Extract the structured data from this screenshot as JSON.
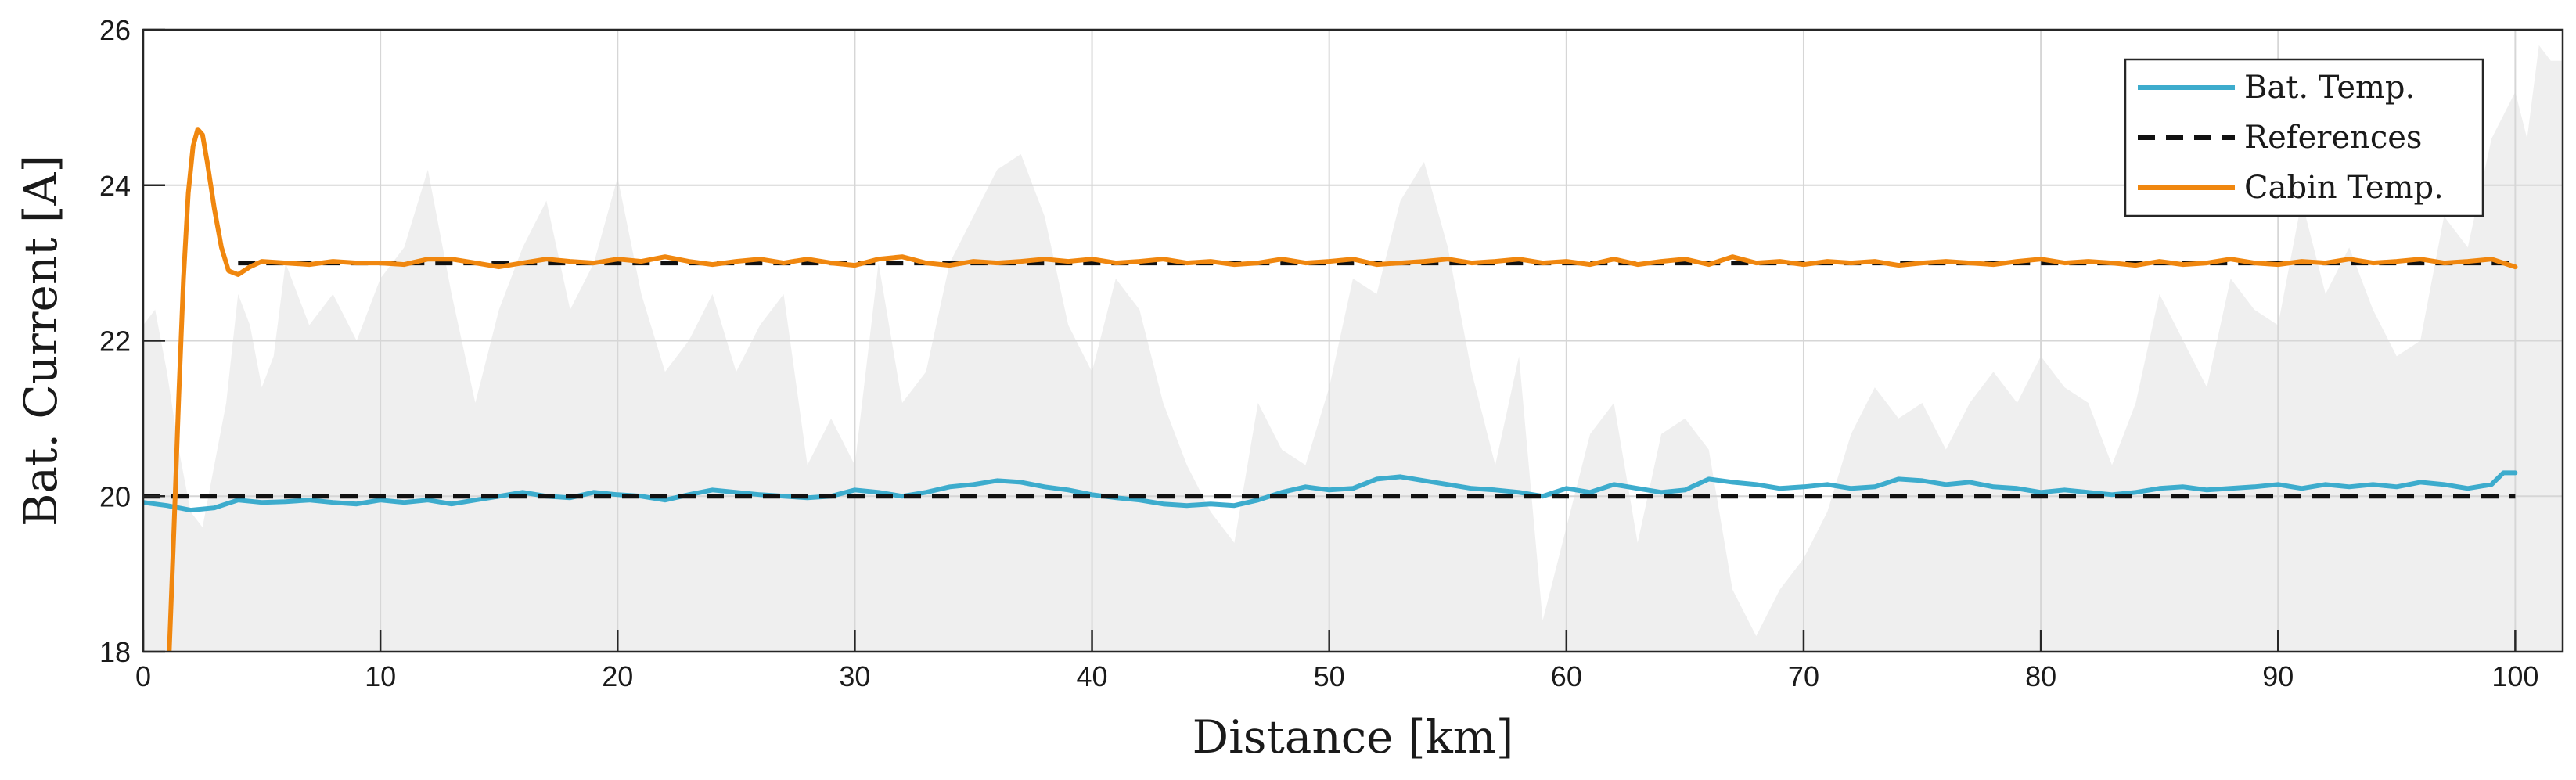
{
  "chart_data": {
    "type": "line",
    "title": "",
    "xlabel": "Distance [km]",
    "ylabel": "Bat. Current [A]",
    "xlim": [
      0,
      102
    ],
    "ylim": [
      18,
      26
    ],
    "xticks": [
      0,
      10,
      20,
      30,
      40,
      50,
      60,
      70,
      80,
      90,
      100
    ],
    "yticks": [
      18,
      20,
      22,
      24,
      26
    ],
    "grid": true,
    "legend_position": "top-right",
    "background_profile": {
      "color": "#efefef",
      "x": [
        0,
        0.5,
        1,
        1.5,
        2,
        2.5,
        3,
        3.5,
        4,
        4.5,
        5,
        5.5,
        6,
        7,
        8,
        9,
        10,
        11,
        12,
        13,
        14,
        15,
        16,
        17,
        18,
        19,
        20,
        21,
        22,
        23,
        24,
        25,
        26,
        27,
        28,
        29,
        30,
        31,
        32,
        33,
        34,
        35,
        36,
        37,
        38,
        39,
        40,
        41,
        42,
        43,
        44,
        45,
        46,
        47,
        48,
        49,
        50,
        51,
        52,
        53,
        54,
        55,
        56,
        57,
        58,
        59,
        60,
        61,
        62,
        63,
        64,
        65,
        66,
        67,
        68,
        69,
        70,
        71,
        72,
        73,
        74,
        75,
        76,
        77,
        78,
        79,
        80,
        81,
        82,
        83,
        84,
        85,
        86,
        87,
        88,
        89,
        90,
        91,
        92,
        93,
        94,
        95,
        96,
        97,
        98,
        99,
        100,
        100.5,
        101,
        101.5,
        102
      ],
      "y": [
        22.2,
        22.4,
        21.6,
        20.6,
        19.8,
        19.6,
        20.4,
        21.2,
        22.6,
        22.2,
        21.4,
        21.8,
        23.0,
        22.2,
        22.6,
        22.0,
        22.8,
        23.2,
        24.2,
        22.6,
        21.2,
        22.4,
        23.2,
        23.8,
        22.4,
        23.0,
        24.1,
        22.6,
        21.6,
        22.0,
        22.6,
        21.6,
        22.2,
        22.6,
        20.4,
        21.0,
        20.4,
        23.0,
        21.2,
        21.6,
        23.0,
        23.6,
        24.2,
        24.4,
        23.6,
        22.2,
        21.6,
        22.8,
        22.4,
        21.2,
        20.4,
        19.8,
        19.4,
        21.2,
        20.6,
        20.4,
        21.4,
        22.8,
        22.6,
        23.8,
        24.3,
        23.2,
        21.6,
        20.4,
        21.8,
        18.4,
        19.6,
        20.8,
        21.2,
        19.4,
        20.8,
        21.0,
        20.6,
        18.8,
        18.2,
        18.8,
        19.2,
        19.8,
        20.8,
        21.4,
        21.0,
        21.2,
        20.6,
        21.2,
        21.6,
        21.2,
        21.8,
        21.4,
        21.2,
        20.4,
        21.2,
        22.6,
        22.0,
        21.4,
        22.8,
        22.4,
        22.2,
        23.8,
        22.6,
        23.2,
        22.4,
        21.8,
        22.0,
        23.6,
        23.2,
        24.6,
        25.2,
        24.6,
        25.8,
        25.6,
        25.6
      ]
    },
    "series": [
      {
        "name": "Bat. Temp.",
        "color": "#3daccd",
        "style": "solid",
        "x": [
          0,
          1,
          2,
          3,
          4,
          5,
          6,
          7,
          8,
          9,
          10,
          11,
          12,
          13,
          14,
          15,
          16,
          17,
          18,
          19,
          20,
          21,
          22,
          23,
          24,
          25,
          26,
          27,
          28,
          29,
          30,
          31,
          32,
          33,
          34,
          35,
          36,
          37,
          38,
          39,
          40,
          41,
          42,
          43,
          44,
          45,
          46,
          47,
          48,
          49,
          50,
          51,
          52,
          53,
          54,
          55,
          56,
          57,
          58,
          59,
          60,
          61,
          62,
          63,
          64,
          65,
          66,
          67,
          68,
          69,
          70,
          71,
          72,
          73,
          74,
          75,
          76,
          77,
          78,
          79,
          80,
          81,
          82,
          83,
          84,
          85,
          86,
          87,
          88,
          89,
          90,
          91,
          92,
          93,
          94,
          95,
          96,
          97,
          98,
          99,
          99.5,
          100
        ],
        "y": [
          19.92,
          19.88,
          19.82,
          19.85,
          19.95,
          19.92,
          19.93,
          19.95,
          19.92,
          19.9,
          19.95,
          19.92,
          19.95,
          19.9,
          19.95,
          20.0,
          20.05,
          20.0,
          19.98,
          20.05,
          20.02,
          20.0,
          19.95,
          20.02,
          20.08,
          20.05,
          20.02,
          20.0,
          19.98,
          20.0,
          20.08,
          20.05,
          20.0,
          20.05,
          20.12,
          20.15,
          20.2,
          20.18,
          20.12,
          20.08,
          20.02,
          19.98,
          19.95,
          19.9,
          19.88,
          19.9,
          19.88,
          19.95,
          20.05,
          20.12,
          20.08,
          20.1,
          20.22,
          20.25,
          20.2,
          20.15,
          20.1,
          20.08,
          20.05,
          20.0,
          20.1,
          20.05,
          20.15,
          20.1,
          20.05,
          20.08,
          20.22,
          20.18,
          20.15,
          20.1,
          20.12,
          20.15,
          20.1,
          20.12,
          20.22,
          20.2,
          20.15,
          20.18,
          20.12,
          20.1,
          20.05,
          20.08,
          20.05,
          20.02,
          20.05,
          20.1,
          20.12,
          20.08,
          20.1,
          20.12,
          20.15,
          20.1,
          20.15,
          20.12,
          20.15,
          20.12,
          20.18,
          20.15,
          20.1,
          20.15,
          20.3,
          20.3
        ]
      },
      {
        "name": "References",
        "color": "#111111",
        "style": "dashed",
        "segments": [
          {
            "x": [
              0,
              100
            ],
            "y": [
              20,
              20
            ]
          },
          {
            "x": [
              4,
              100
            ],
            "y": [
              23,
              23
            ]
          }
        ]
      },
      {
        "name": "Cabin Temp.",
        "color": "#f0870f",
        "style": "solid",
        "x": [
          1.1,
          1.3,
          1.5,
          1.7,
          1.9,
          2.1,
          2.3,
          2.5,
          2.7,
          3.0,
          3.3,
          3.6,
          4.0,
          4.5,
          5,
          6,
          7,
          8,
          9,
          10,
          11,
          12,
          13,
          14,
          15,
          16,
          17,
          18,
          19,
          20,
          21,
          22,
          23,
          24,
          25,
          26,
          27,
          28,
          29,
          30,
          31,
          32,
          33,
          34,
          35,
          36,
          37,
          38,
          39,
          40,
          41,
          42,
          43,
          44,
          45,
          46,
          47,
          48,
          49,
          50,
          51,
          52,
          53,
          54,
          55,
          56,
          57,
          58,
          59,
          60,
          61,
          62,
          63,
          64,
          65,
          66,
          67,
          68,
          69,
          70,
          71,
          72,
          73,
          74,
          75,
          76,
          77,
          78,
          79,
          80,
          81,
          82,
          83,
          84,
          85,
          86,
          87,
          88,
          89,
          90,
          91,
          92,
          93,
          94,
          95,
          96,
          97,
          98,
          99,
          100
        ],
        "y": [
          18.0,
          19.6,
          21.3,
          22.8,
          23.9,
          24.5,
          24.72,
          24.65,
          24.3,
          23.7,
          23.2,
          22.9,
          22.85,
          22.95,
          23.02,
          23.0,
          22.98,
          23.02,
          23.0,
          23.0,
          22.98,
          23.05,
          23.05,
          23.0,
          22.95,
          23.0,
          23.05,
          23.02,
          23.0,
          23.05,
          23.02,
          23.08,
          23.02,
          22.98,
          23.02,
          23.05,
          23.0,
          23.05,
          23.0,
          22.97,
          23.05,
          23.08,
          23.0,
          22.97,
          23.02,
          23.0,
          23.02,
          23.05,
          23.02,
          23.05,
          23.0,
          23.02,
          23.05,
          23.0,
          23.02,
          22.98,
          23.0,
          23.05,
          23.0,
          23.02,
          23.05,
          22.98,
          23.0,
          23.02,
          23.05,
          23.0,
          23.02,
          23.05,
          23.0,
          23.02,
          22.98,
          23.05,
          22.98,
          23.02,
          23.05,
          22.98,
          23.08,
          23.0,
          23.02,
          22.98,
          23.02,
          23.0,
          23.02,
          22.97,
          23.0,
          23.02,
          23.0,
          22.98,
          23.02,
          23.05,
          23.0,
          23.02,
          23.0,
          22.97,
          23.02,
          22.98,
          23.0,
          23.05,
          23.0,
          22.98,
          23.02,
          23.0,
          23.05,
          23.0,
          23.02,
          23.05,
          23.0,
          23.02,
          23.05,
          22.95
        ]
      }
    ]
  }
}
